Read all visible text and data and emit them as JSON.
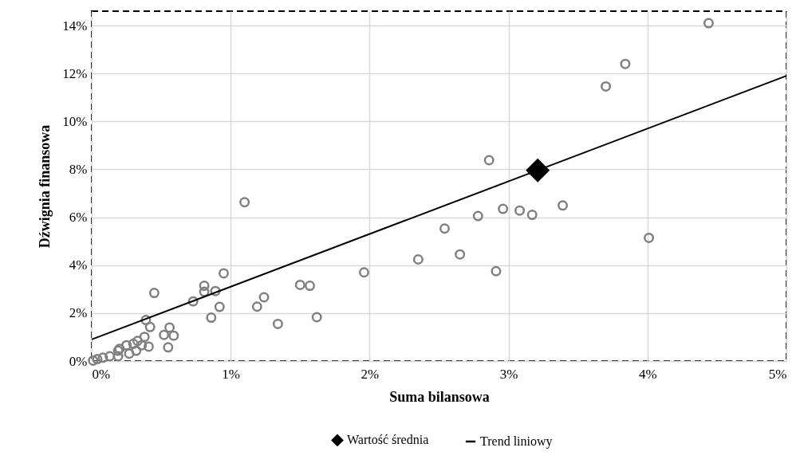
{
  "chart_data": {
    "type": "scatter",
    "xlabel": "Suma bilansowa",
    "ylabel": "Dźwignia finansowa",
    "xlim": [
      0,
      5
    ],
    "ylim": [
      0,
      14.6
    ],
    "xticks": [
      {
        "value": 0,
        "label": "0%"
      },
      {
        "value": 1,
        "label": "1%"
      },
      {
        "value": 2,
        "label": "2%"
      },
      {
        "value": 3,
        "label": "3%"
      },
      {
        "value": 4,
        "label": "4%"
      },
      {
        "value": 5,
        "label": "5%"
      }
    ],
    "yticks": [
      {
        "value": 0,
        "label": "0%"
      },
      {
        "value": 2,
        "label": "2%"
      },
      {
        "value": 4,
        "label": "4%"
      },
      {
        "value": 6,
        "label": "6%"
      },
      {
        "value": 8,
        "label": "8%"
      },
      {
        "value": 10,
        "label": "10%"
      },
      {
        "value": 12,
        "label": "12%"
      },
      {
        "value": 14,
        "label": "14%"
      }
    ],
    "grid": true,
    "legend": "bottom",
    "series": [
      {
        "type": "scatter",
        "marker": "circle",
        "color": "#808080",
        "x": [
          4.44,
          3.84,
          3.7,
          2.86,
          3.39,
          2.96,
          3.08,
          3.17,
          2.78,
          2.54,
          2.35,
          2.65,
          2.91,
          4.01,
          1.96,
          1.1,
          0.95,
          0.81,
          0.81,
          0.89,
          0.73,
          0.92,
          0.86,
          1.24,
          1.19,
          1.34,
          1.5,
          1.57,
          1.62,
          0.56,
          0.52,
          0.59,
          0.55,
          0.45,
          0.39,
          0.42,
          0.38,
          0.33,
          0.3,
          0.41,
          0.32,
          0.27,
          0.19,
          0.19,
          0.13,
          0.08,
          0.04,
          0.01,
          0.25,
          0.36,
          0.2
        ],
        "values": [
          14.1,
          12.4,
          11.46,
          8.38,
          6.49,
          6.35,
          6.28,
          6.1,
          6.05,
          5.53,
          4.24,
          4.45,
          3.75,
          5.14,
          3.7,
          6.63,
          3.66,
          3.14,
          2.89,
          2.92,
          2.49,
          2.26,
          1.81,
          2.66,
          2.27,
          1.55,
          3.18,
          3.14,
          1.83,
          1.4,
          1.09,
          1.06,
          0.57,
          2.84,
          1.71,
          1.42,
          1.01,
          0.84,
          0.72,
          0.6,
          0.43,
          0.31,
          0.43,
          0.2,
          0.2,
          0.14,
          0.08,
          0.02,
          0.66,
          0.66,
          0.51
        ]
      },
      {
        "type": "scatter",
        "name": "Wartość średnia",
        "marker": "diamond",
        "color": "#000000",
        "x": [
          3.21
        ],
        "values": [
          7.96
        ]
      },
      {
        "type": "line",
        "name": "Trend liniowy",
        "color": "#000000",
        "line_style": "solid",
        "x": [
          0,
          5
        ],
        "values": [
          0.9,
          11.9
        ]
      }
    ]
  }
}
